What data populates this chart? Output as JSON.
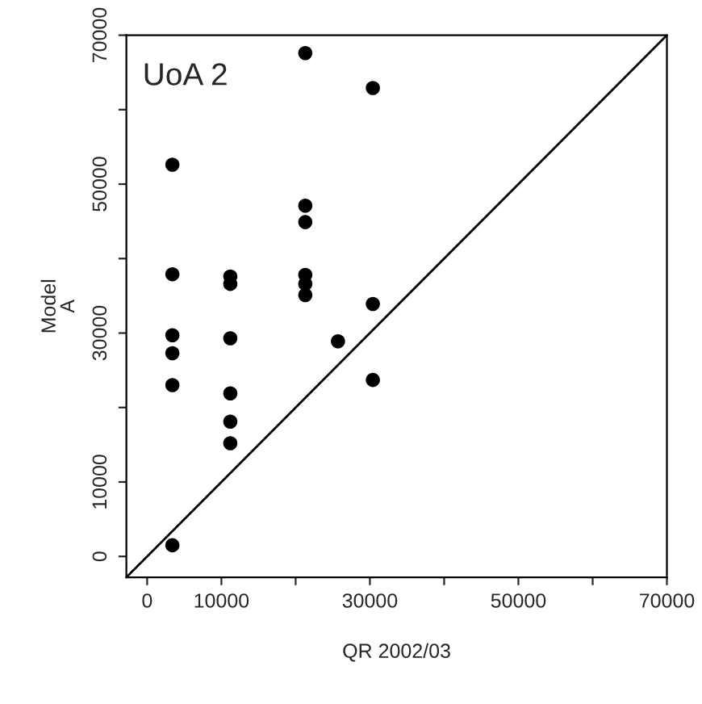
{
  "chart_data": {
    "type": "scatter",
    "xlabel": "QR 2002/03",
    "ylabel": "Model\nA",
    "annotations": [
      "UoA 2"
    ],
    "xlim": [
      -2800,
      70000
    ],
    "ylim": [
      -2800,
      70000
    ],
    "xticks": [
      0,
      {
        "value": 10000,
        "label": "10000"
      },
      {
        "value": 20000,
        "label": null
      },
      30000,
      {
        "value": 40000,
        "label": null
      },
      50000,
      {
        "value": 60000,
        "label": null
      },
      70000
    ],
    "yticks": [
      0,
      10000,
      {
        "value": 20000,
        "label": null
      },
      30000,
      {
        "value": 40000,
        "label": null
      },
      50000,
      {
        "value": 60000,
        "label": null
      },
      70000
    ],
    "grid": false,
    "legend": false,
    "series": [
      {
        "marker": "circle",
        "color": "#000000",
        "x": [
          3400,
          3400,
          3400,
          3400,
          3400,
          3400,
          11200,
          11200,
          11200,
          11200,
          11200,
          11200,
          21300,
          21300,
          21300,
          21300,
          21300,
          21300,
          25700,
          30400,
          30400,
          30400
        ],
        "values": [
          52600,
          37900,
          29700,
          27300,
          23000,
          1500,
          37600,
          36600,
          29300,
          21900,
          18100,
          15200,
          67600,
          47100,
          44900,
          37800,
          36600,
          35100,
          28900,
          62900,
          33900,
          23700
        ]
      },
      {
        "type": "line",
        "color": "#000000",
        "x": [
          -2800,
          70000
        ],
        "values": [
          -2800,
          70000
        ]
      }
    ]
  }
}
